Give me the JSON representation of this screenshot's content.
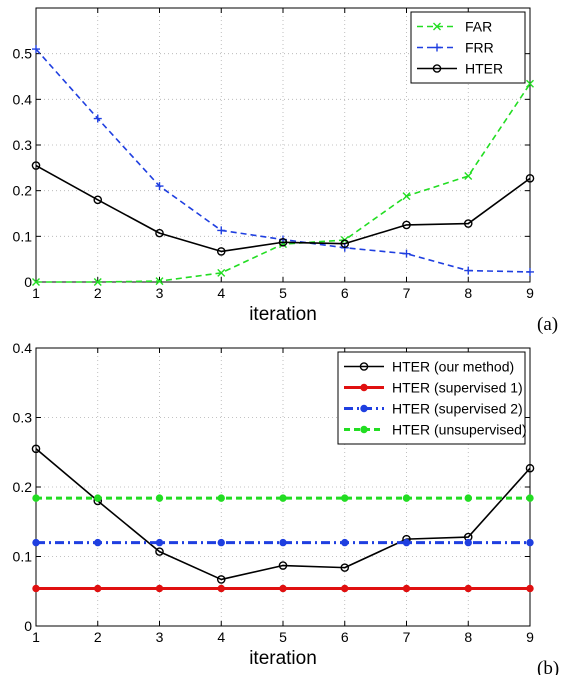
{
  "chart_data": [
    {
      "type": "line",
      "panel_label": "(a)",
      "xlabel": "iteration",
      "ylabel": "",
      "xlim": [
        1,
        9
      ],
      "ylim": [
        0,
        0.6
      ],
      "xticks": [
        "1",
        "2",
        "3",
        "4",
        "5",
        "6",
        "7",
        "8",
        "9"
      ],
      "yticks": [
        "0",
        "0.1",
        "0.2",
        "0.3",
        "0.4",
        "0.5"
      ],
      "grid": true,
      "legend_position": "top-right",
      "x": [
        1,
        2,
        3,
        4,
        5,
        6,
        7,
        8,
        9
      ],
      "series": [
        {
          "name": "FAR",
          "color": "#22dd22",
          "dash": "dashed",
          "marker": "x",
          "width": 1.6,
          "values": [
            0.0,
            0.0,
            0.002,
            0.02,
            0.083,
            0.092,
            0.188,
            0.232,
            0.434
          ]
        },
        {
          "name": "FRR",
          "color": "#1f3fe0",
          "dash": "dashed",
          "marker": "plus",
          "width": 1.6,
          "values": [
            0.51,
            0.358,
            0.21,
            0.113,
            0.093,
            0.075,
            0.062,
            0.025,
            0.022
          ]
        },
        {
          "name": "HTER",
          "color": "#000000",
          "dash": "solid",
          "marker": "circle",
          "width": 1.6,
          "values": [
            0.255,
            0.18,
            0.107,
            0.067,
            0.087,
            0.084,
            0.125,
            0.128,
            0.227
          ]
        }
      ]
    },
    {
      "type": "line",
      "panel_label": "(b)",
      "xlabel": "iteration",
      "ylabel": "",
      "xlim": [
        1,
        9
      ],
      "ylim": [
        0,
        0.4
      ],
      "xticks": [
        "1",
        "2",
        "3",
        "4",
        "5",
        "6",
        "7",
        "8",
        "9"
      ],
      "yticks": [
        "0",
        "0.1",
        "0.2",
        "0.3",
        "0.4"
      ],
      "grid": true,
      "legend_position": "top-right",
      "x": [
        1,
        2,
        3,
        4,
        5,
        6,
        7,
        8,
        9
      ],
      "series": [
        {
          "name": "HTER (our method)",
          "color": "#000000",
          "dash": "solid",
          "marker": "circle",
          "width": 1.6,
          "values": [
            0.255,
            0.18,
            0.107,
            0.067,
            0.087,
            0.084,
            0.125,
            0.128,
            0.227
          ]
        },
        {
          "name": "HTER (supervised 1)",
          "color": "#e01010",
          "dash": "solid",
          "marker": "dot",
          "width": 3,
          "values": [
            0.054,
            0.054,
            0.054,
            0.054,
            0.054,
            0.054,
            0.054,
            0.054,
            0.054
          ]
        },
        {
          "name": "HTER (supervised 2)",
          "color": "#1f3fe0",
          "dash": "dashdot",
          "marker": "dot",
          "width": 3,
          "values": [
            0.12,
            0.12,
            0.12,
            0.12,
            0.12,
            0.12,
            0.12,
            0.12,
            0.12
          ]
        },
        {
          "name": "HTER (unsupervised)",
          "color": "#22dd22",
          "dash": "dashed",
          "marker": "dot",
          "width": 3,
          "values": [
            0.184,
            0.184,
            0.184,
            0.184,
            0.184,
            0.184,
            0.184,
            0.184,
            0.184
          ]
        }
      ]
    }
  ]
}
